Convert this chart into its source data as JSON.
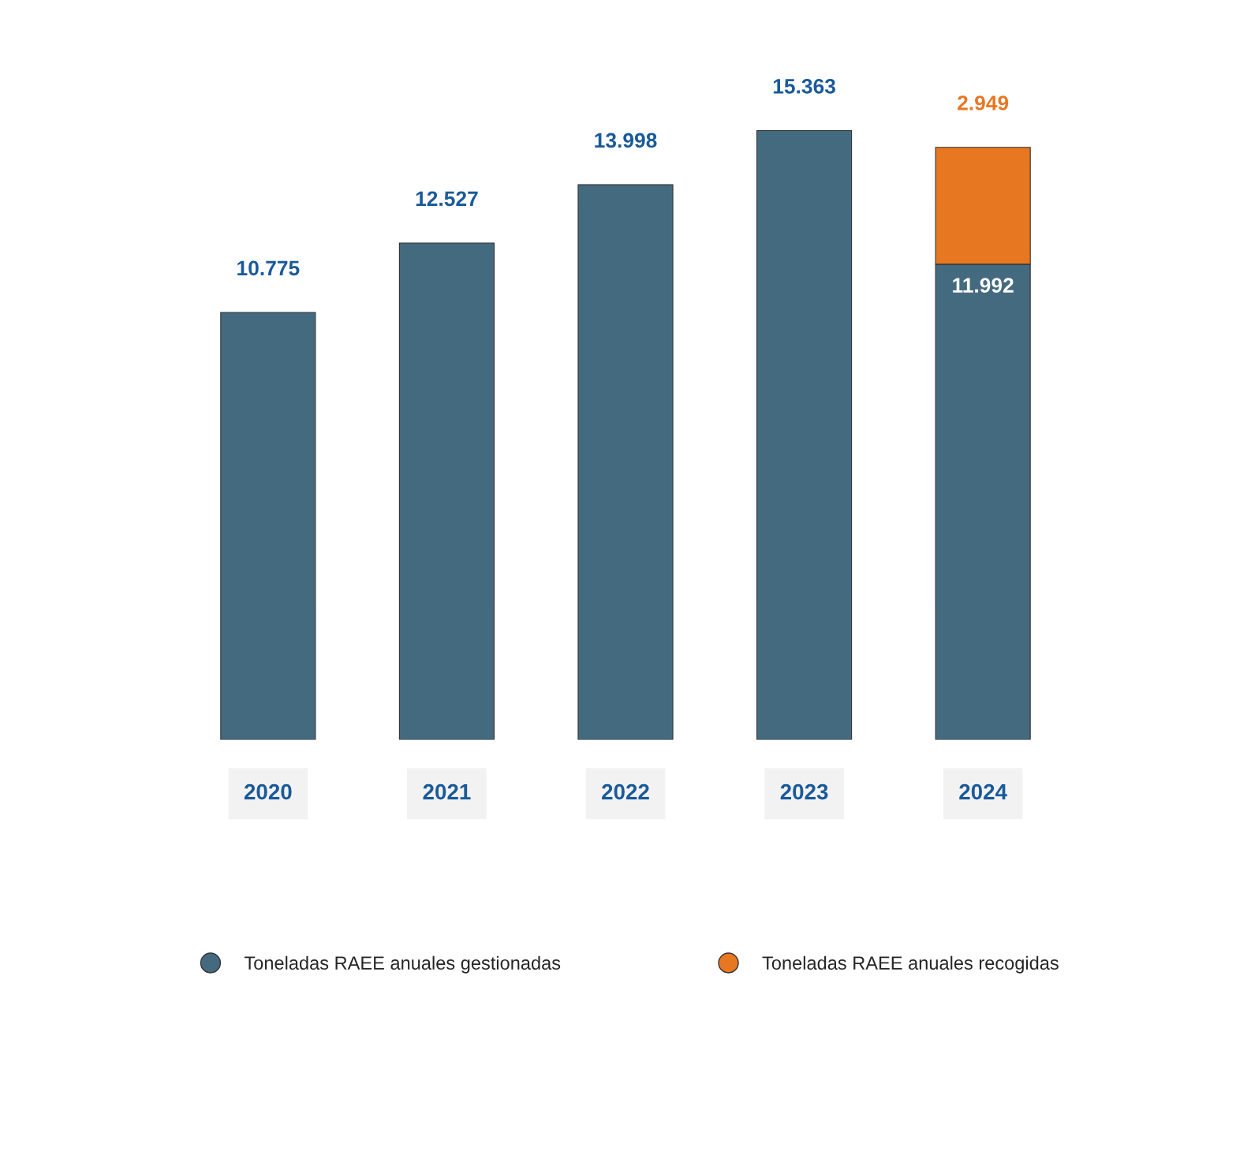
{
  "chart_data": {
    "type": "bar",
    "stacked": true,
    "categories": [
      "2020",
      "2021",
      "2022",
      "2023",
      "2024"
    ],
    "series": [
      {
        "name": "Toneladas RAEE anuales gestionadas",
        "color": "#446a80",
        "values": [
          10775,
          12527,
          13998,
          15363,
          11992
        ],
        "value_labels": [
          "10.775",
          "12.527",
          "13.998",
          "15.363",
          "11.992"
        ]
      },
      {
        "name": "Toneladas RAEE anuales recogidas",
        "color": "#e87722",
        "values": [
          null,
          null,
          null,
          null,
          2949
        ],
        "value_labels": [
          null,
          null,
          null,
          null,
          "2.949"
        ]
      }
    ],
    "ylim": [
      0,
      15400
    ],
    "tick_labels": "x",
    "grid": false,
    "legend": "bottom"
  }
}
